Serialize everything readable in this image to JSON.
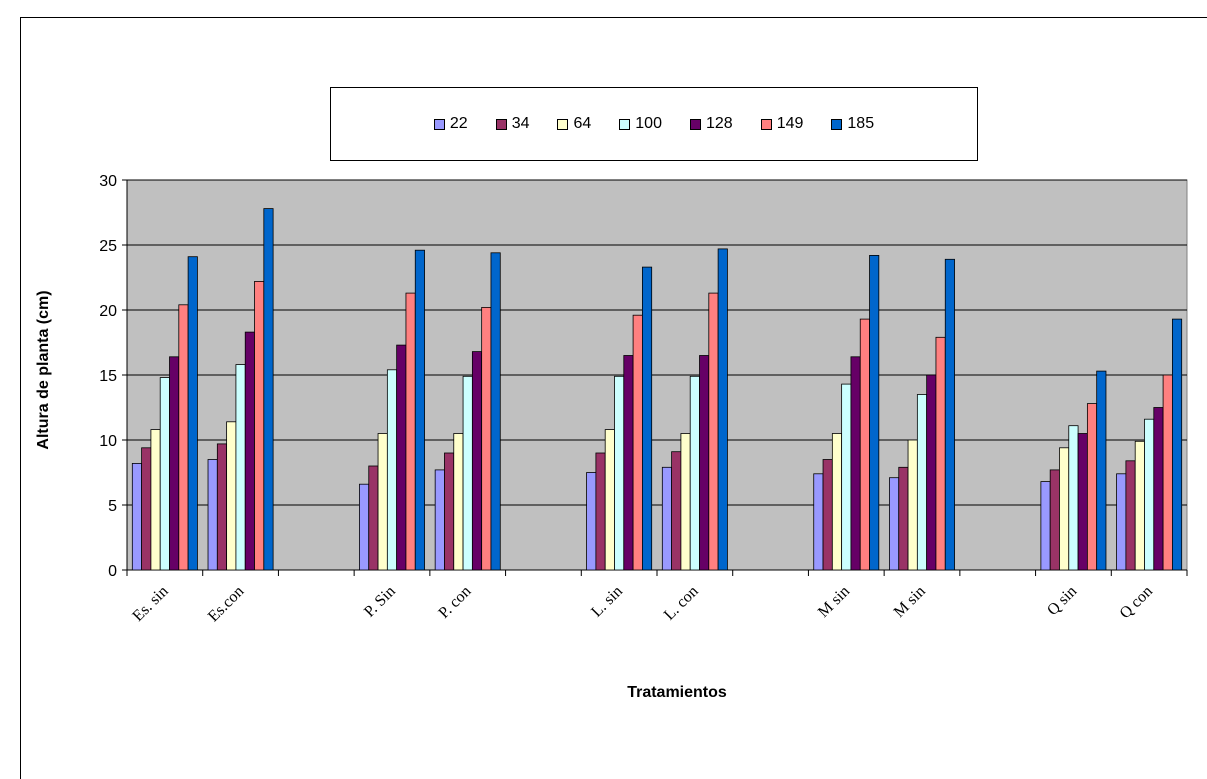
{
  "chart_data": {
    "type": "bar",
    "title": "",
    "xlabel": "Tratamientos",
    "ylabel": "Altura de planta (cm)",
    "ylim": [
      0,
      30
    ],
    "yticks": [
      0,
      5,
      10,
      15,
      20,
      25,
      30
    ],
    "grid": true,
    "legend_position": "top",
    "categories": [
      "Es. sin",
      "Es.con",
      "",
      "P. Sin",
      "P. con",
      "",
      "L. sin",
      "L. con",
      "",
      "M sin",
      "M sin",
      "",
      "Q sin",
      "Q con"
    ],
    "series": [
      {
        "name": "22",
        "color": "#9999ff",
        "values": [
          8.2,
          8.5,
          null,
          6.6,
          7.7,
          null,
          7.5,
          7.9,
          null,
          7.4,
          7.1,
          null,
          6.8,
          7.4
        ]
      },
      {
        "name": "34",
        "color": "#993366",
        "values": [
          9.4,
          9.7,
          null,
          8.0,
          9.0,
          null,
          9.0,
          9.1,
          null,
          8.5,
          7.9,
          null,
          7.7,
          8.4
        ]
      },
      {
        "name": "64",
        "color": "#ffffcc",
        "values": [
          10.8,
          11.4,
          null,
          10.5,
          10.5,
          null,
          10.8,
          10.5,
          null,
          10.5,
          10.0,
          null,
          9.4,
          9.9
        ]
      },
      {
        "name": "100",
        "color": "#ccffff",
        "values": [
          14.8,
          15.8,
          null,
          15.4,
          14.9,
          null,
          14.9,
          14.9,
          null,
          14.3,
          13.5,
          null,
          11.1,
          11.6
        ]
      },
      {
        "name": "128",
        "color": "#660066",
        "values": [
          16.4,
          18.3,
          null,
          17.3,
          16.8,
          null,
          16.5,
          16.5,
          null,
          16.4,
          15.0,
          null,
          10.5,
          12.5
        ]
      },
      {
        "name": "149",
        "color": "#ff8080",
        "values": [
          20.4,
          22.2,
          null,
          21.3,
          20.2,
          null,
          19.6,
          21.3,
          null,
          19.3,
          17.9,
          null,
          12.8,
          15.0
        ]
      },
      {
        "name": "185",
        "color": "#0066cc",
        "values": [
          24.1,
          27.8,
          null,
          24.6,
          24.4,
          null,
          23.3,
          24.7,
          null,
          24.2,
          23.9,
          null,
          15.3,
          19.3
        ]
      }
    ]
  },
  "colors": {
    "plot_background": "#c0c0c0",
    "gridline": "#000000"
  }
}
